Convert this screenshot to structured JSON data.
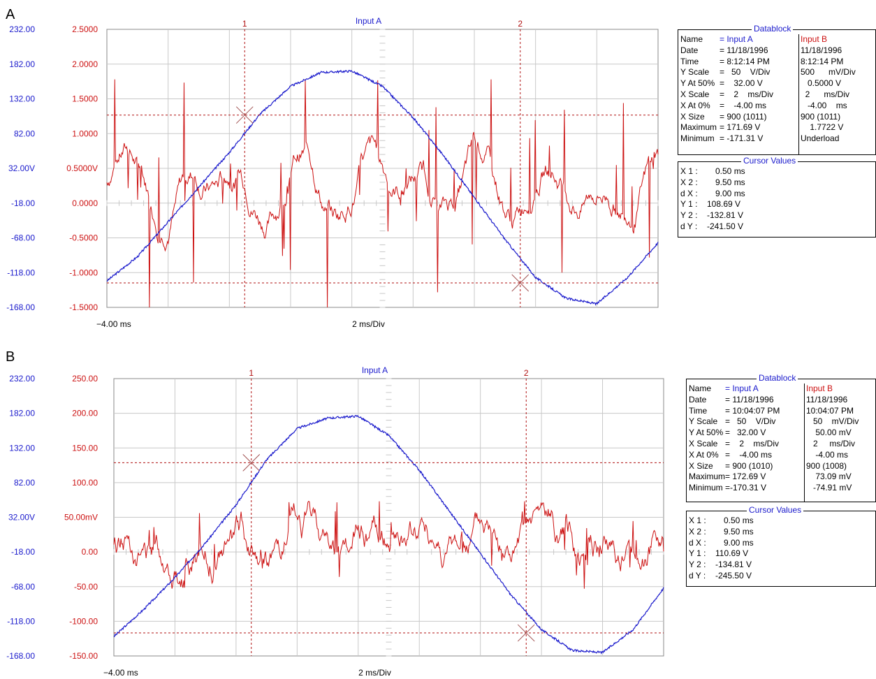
{
  "chart_data": [
    {
      "panel": "A",
      "type": "line",
      "title": "Input A",
      "x_start_label": "−4.00 ms",
      "x_div_label": "2 ms/Div",
      "xlim": [
        -4,
        14
      ],
      "left_axis": {
        "ticks": [
          "232.00",
          "182.00",
          "132.00",
          "82.00",
          "32.00V",
          "-18.00",
          "-68.00",
          "-118.00",
          "-168.00"
        ],
        "ylim": [
          -168,
          232
        ],
        "color": "#1a1acc"
      },
      "right_axis": {
        "ticks": [
          "2.5000",
          "2.0000",
          "1.5000",
          "1.0000",
          "0.5000V",
          "0.0000",
          "-0.5000",
          "-1.0000",
          "-1.5000"
        ],
        "ylim": [
          -1.5,
          2.5
        ],
        "color": "#cc1111"
      },
      "cursors": [
        {
          "label": "1",
          "x": 0.5,
          "y_a": 108.69
        },
        {
          "label": "2",
          "x": 9.5,
          "y_a": -132.81
        }
      ],
      "series": [
        {
          "name": "Input A",
          "color": "#1a1acc",
          "axis": "left",
          "x": [
            -4,
            -3,
            -2,
            -1,
            0,
            1,
            2,
            3,
            4,
            5,
            6,
            7,
            8,
            9,
            10,
            11,
            12,
            13,
            14
          ],
          "values": [
            -130,
            -95,
            -45,
            5,
            55,
            110,
            150,
            170,
            172,
            150,
            105,
            50,
            -10,
            -70,
            -125,
            -155,
            -163,
            -125,
            -75
          ]
        },
        {
          "name": "Input B",
          "color": "#cc1111",
          "axis": "right",
          "seed": 7,
          "noise_amp": 1.4,
          "base": 0.3,
          "step": 0.03,
          "min": -1.5,
          "max": 1.78
        }
      ],
      "datablock": {
        "title": "Datablock",
        "colA": {
          "name": "= Input A",
          "date": "= 11/18/1996",
          "time": "= 8:12:14 PM",
          "yscale": "=   50    V/Div",
          "yat50": "=    32.00 V",
          "xscale": "=    2    ms/Div",
          "xat0": "=    -4.00 ms",
          "xsize": "= 900 (1011)",
          "maximum": "= 171.69 V",
          "minimum": "= -171.31 V"
        },
        "colB": {
          "name": "Input B",
          "date": "11/18/1996",
          "time": "8:12:14 PM",
          "yscale": "500      mV/Div",
          "yat50": "   0.5000 V",
          "xscale": "  2      ms/Div",
          "xat0": "   -4.00    ms",
          "xsize": "900 (1011)",
          "maximum": "    1.7722 V",
          "minimum": "Underload"
        }
      },
      "cursor_values": {
        "title": "Cursor Values",
        "x1": "0.50 ms",
        "x2": "9.50 ms",
        "dx": "9.00 ms",
        "y1": "108.69 V",
        "y2": "-132.81 V",
        "dy": "-241.50 V"
      }
    },
    {
      "panel": "B",
      "type": "line",
      "title": "Input A",
      "x_start_label": "−4.00 ms",
      "x_div_label": "2 ms/Div",
      "xlim": [
        -4,
        14
      ],
      "left_axis": {
        "ticks": [
          "232.00",
          "182.00",
          "132.00",
          "82.00",
          "32.00V",
          "-18.00",
          "-68.00",
          "-118.00",
          "-168.00"
        ],
        "ylim": [
          -168,
          232
        ],
        "color": "#1a1acc"
      },
      "right_axis": {
        "ticks": [
          "250.00",
          "200.00",
          "150.00",
          "100.00",
          "50.00mV",
          "0.00",
          "-50.00",
          "-100.00",
          "-150.00"
        ],
        "ylim": [
          -150,
          250
        ],
        "color": "#cc1111"
      },
      "cursors": [
        {
          "label": "1",
          "x": 0.5,
          "y_a": 110.69
        },
        {
          "label": "2",
          "x": 9.5,
          "y_a": -134.81
        }
      ],
      "series": [
        {
          "name": "Input A",
          "color": "#1a1acc",
          "axis": "left",
          "x": [
            -4,
            -3,
            -2,
            -1,
            0,
            1,
            2,
            3,
            4,
            5,
            6,
            7,
            8,
            9,
            10,
            11,
            12,
            13,
            14
          ],
          "values": [
            -140,
            -100,
            -55,
            -5,
            50,
            115,
            160,
            175,
            178,
            150,
            100,
            40,
            -20,
            -80,
            -130,
            -160,
            -163,
            -130,
            -70
          ]
        },
        {
          "name": "Input B",
          "color": "#cc1111",
          "axis": "right",
          "seed": 13,
          "noise_amp": 45,
          "base": 5,
          "step": 4,
          "min": -74.91,
          "max": 73.09
        }
      ],
      "datablock": {
        "title": "Datablock",
        "colA": {
          "name": "= Input A",
          "date": "= 11/18/1996",
          "time": "= 10:04:07 PM",
          "yscale": "=   50    V/Div",
          "yat50": "=   32.00 V",
          "xscale": "=    2    ms/Div",
          "xat0": "=    -4.00 ms",
          "xsize": "= 900 (1010)",
          "maximum": "= 172.69 V",
          "minimum": "=-170.31 V"
        },
        "colB": {
          "name": "Input B",
          "date": "11/18/1996",
          "time": "10:04:07 PM",
          "yscale": "   50    mV/Div",
          "yat50": "    50.00 mV",
          "xscale": "   2     ms/Div",
          "xat0": "    -4.00 ms",
          "xsize": "900 (1008)",
          "maximum": "    73.09 mV",
          "minimum": "   -74.91 mV"
        }
      },
      "cursor_values": {
        "title": "Cursor Values",
        "x1": "0.50 ms",
        "x2": "9.50 ms",
        "dx": "9.00 ms",
        "y1": "110.69 V",
        "y2": "-134.81 V",
        "dy": "-245.50 V"
      }
    }
  ],
  "labels": {
    "name": "Name",
    "date": "Date",
    "time": "Time",
    "yscale": "Y Scale",
    "yat50": "Y At 50%",
    "xscale": "X Scale",
    "xat0": "X At 0%",
    "xsize": "X Size",
    "maximum": "Maximum",
    "minimum": "Minimum",
    "x1": "X 1 :",
    "x2": "X 2 :",
    "dx": "d X :",
    "y1": "Y 1 :",
    "y2": "Y 2 :",
    "dy": "d Y :"
  }
}
